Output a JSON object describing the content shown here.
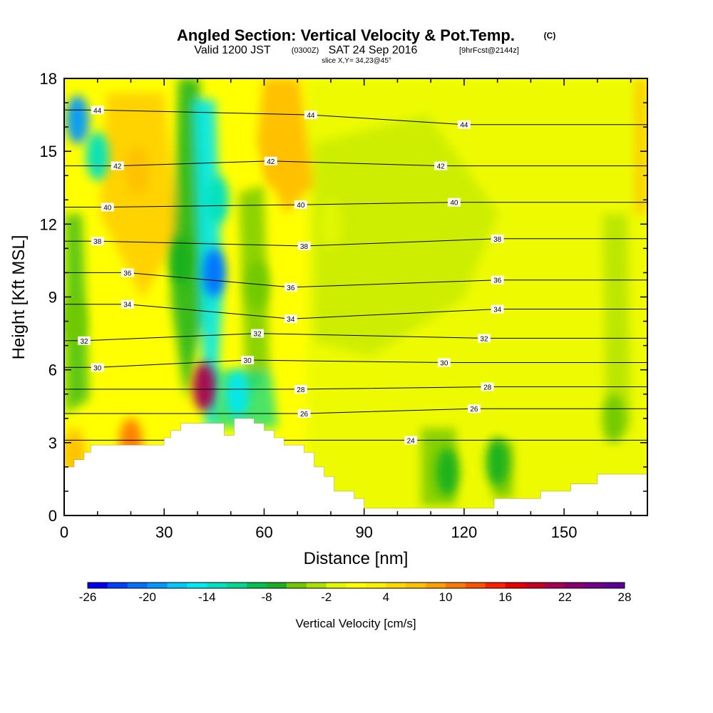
{
  "title": {
    "main": "Angled Section: Vertical Velocity & Pot.Temp.",
    "suffix": "(C)",
    "valid_a": "Valid 1200 JST",
    "valid_b": "(0300Z)",
    "valid_c": "SAT 24 Sep 2016",
    "valid_d": "[9hrFcst@2144z]",
    "slice": "slice X,Y= 34,23@45°"
  },
  "chart_data": {
    "type": "heatmap",
    "xlabel": "Distance [nm]",
    "ylabel": "Height [Kft MSL]",
    "xlim": [
      0,
      175
    ],
    "ylim": [
      0,
      18
    ],
    "x_ticks": [
      0,
      30,
      60,
      90,
      120,
      150
    ],
    "y_ticks": [
      0,
      3,
      6,
      9,
      12,
      15,
      18
    ],
    "field": "Vertical Velocity",
    "colorbar": {
      "label": "Vertical Velocity [cm/s]",
      "min": -26,
      "max": 28,
      "step": 2,
      "tick_values": [
        -26,
        -20,
        -14,
        -8,
        -2,
        4,
        10,
        16,
        22,
        28
      ],
      "colors": [
        "#0000f0",
        "#0040f8",
        "#0070ff",
        "#0098ff",
        "#00c8ff",
        "#00e8f0",
        "#00e0c0",
        "#00d890",
        "#00c050",
        "#18b020",
        "#70c800",
        "#a8e000",
        "#e0f800",
        "#ffff00",
        "#fff000",
        "#ffd800",
        "#ffc000",
        "#ffa000",
        "#ff7800",
        "#ff5000",
        "#ff2000",
        "#e80000",
        "#c80020",
        "#a80050",
        "#880070",
        "#700088",
        "#5c0098"
      ]
    },
    "velocity_features": [
      {
        "x": 4,
        "y": 16.3,
        "value": -20
      },
      {
        "x": 10,
        "y": 14.8,
        "value": -14
      },
      {
        "x": 35,
        "y": 10.5,
        "value": -8
      },
      {
        "x": 45,
        "y": 10.0,
        "value": -22
      },
      {
        "x": 46,
        "y": 13.0,
        "value": -14
      },
      {
        "x": 52,
        "y": 5.0,
        "value": -16
      },
      {
        "x": 42,
        "y": 5.3,
        "value": 22
      },
      {
        "x": 20,
        "y": 3.0,
        "value": 12
      },
      {
        "x": 3,
        "y": 2.6,
        "value": 8
      },
      {
        "x": 22,
        "y": 14.2,
        "value": 8
      },
      {
        "x": 63,
        "y": 14.5,
        "value": 8
      },
      {
        "x": 58,
        "y": 9.5,
        "value": -6
      },
      {
        "x": 80,
        "y": 12.0,
        "value": -2
      },
      {
        "x": 115,
        "y": 1.8,
        "value": -8
      },
      {
        "x": 130,
        "y": 2.2,
        "value": -8
      },
      {
        "x": 3,
        "y": 8.0,
        "value": -6
      },
      {
        "x": 165,
        "y": 4.0,
        "value": -6
      }
    ],
    "theta_contours": [
      {
        "value": 24,
        "label_points": [
          [
            104,
            3.1
          ]
        ]
      },
      {
        "value": 26,
        "label_points": [
          [
            72,
            4.2
          ],
          [
            123,
            4.4
          ]
        ]
      },
      {
        "value": 28,
        "label_points": [
          [
            71,
            5.2
          ],
          [
            127,
            5.3
          ]
        ]
      },
      {
        "value": 30,
        "label_points": [
          [
            10,
            6.1
          ],
          [
            55,
            6.4
          ],
          [
            114,
            6.3
          ]
        ]
      },
      {
        "value": 32,
        "label_points": [
          [
            6,
            7.2
          ],
          [
            58,
            7.5
          ],
          [
            126,
            7.3
          ]
        ]
      },
      {
        "value": 34,
        "label_points": [
          [
            19,
            8.7
          ],
          [
            68,
            8.1
          ],
          [
            130,
            8.5
          ]
        ]
      },
      {
        "value": 36,
        "label_points": [
          [
            19,
            10.0
          ],
          [
            68,
            9.4
          ],
          [
            130,
            9.7
          ]
        ]
      },
      {
        "value": 38,
        "label_points": [
          [
            10,
            11.3
          ],
          [
            72,
            11.1
          ],
          [
            130,
            11.4
          ]
        ]
      },
      {
        "value": 40,
        "label_points": [
          [
            13,
            12.7
          ],
          [
            71,
            12.8
          ],
          [
            117,
            12.9
          ]
        ]
      },
      {
        "value": 42,
        "label_points": [
          [
            16,
            14.4
          ],
          [
            62,
            14.6
          ],
          [
            113,
            14.4
          ]
        ]
      },
      {
        "value": 44,
        "label_points": [
          [
            10,
            16.7
          ],
          [
            74,
            16.5
          ],
          [
            120,
            16.1
          ]
        ]
      }
    ],
    "terrain": [
      [
        0,
        2.0
      ],
      [
        3,
        2.0
      ],
      [
        3,
        2.3
      ],
      [
        6,
        2.3
      ],
      [
        6,
        2.6
      ],
      [
        8,
        2.6
      ],
      [
        8,
        2.9
      ],
      [
        30,
        2.9
      ],
      [
        30,
        3.2
      ],
      [
        32,
        3.2
      ],
      [
        32,
        3.5
      ],
      [
        35,
        3.5
      ],
      [
        35,
        3.8
      ],
      [
        48,
        3.8
      ],
      [
        48,
        3.3
      ],
      [
        51,
        3.3
      ],
      [
        51,
        4.0
      ],
      [
        57,
        4.0
      ],
      [
        57,
        3.8
      ],
      [
        60,
        3.8
      ],
      [
        60,
        3.5
      ],
      [
        63,
        3.5
      ],
      [
        63,
        3.2
      ],
      [
        66,
        3.2
      ],
      [
        66,
        2.9
      ],
      [
        72,
        2.9
      ],
      [
        72,
        2.6
      ],
      [
        75,
        2.6
      ],
      [
        75,
        2.0
      ],
      [
        78,
        2.0
      ],
      [
        78,
        1.6
      ],
      [
        81,
        1.6
      ],
      [
        81,
        1.0
      ],
      [
        87,
        1.0
      ],
      [
        87,
        0.7
      ],
      [
        90,
        0.7
      ],
      [
        90,
        0.3
      ],
      [
        129,
        0.3
      ],
      [
        129,
        0.7
      ],
      [
        143,
        0.7
      ],
      [
        143,
        1.0
      ],
      [
        152,
        1.0
      ],
      [
        152,
        1.3
      ],
      [
        160,
        1.3
      ],
      [
        160,
        1.7
      ],
      [
        175,
        1.7
      ]
    ]
  }
}
